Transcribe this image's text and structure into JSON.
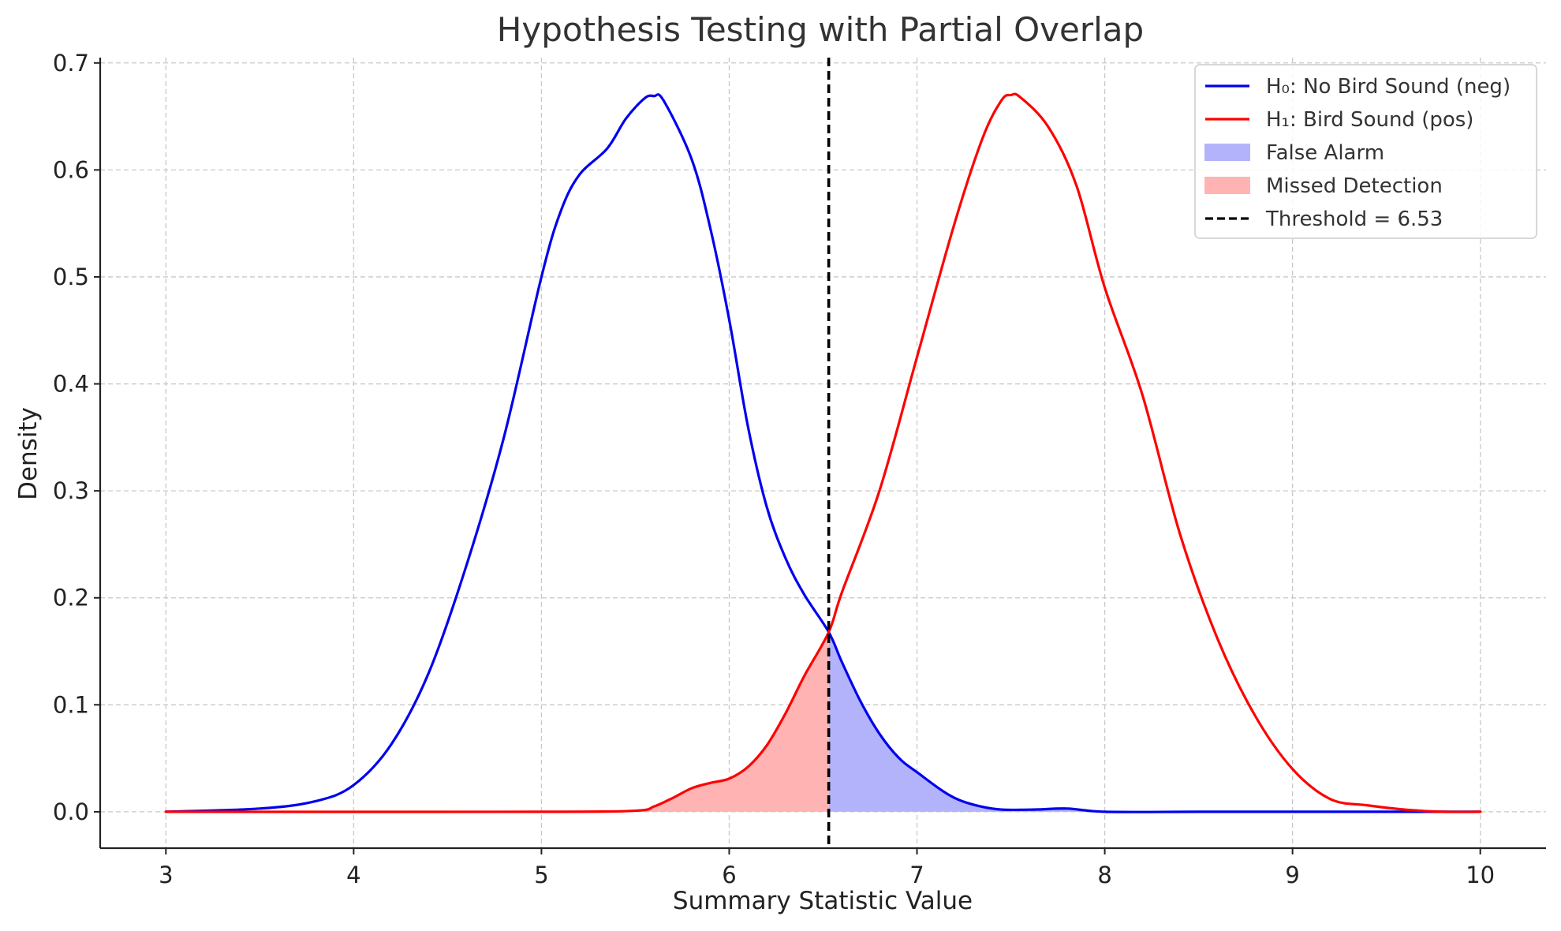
{
  "chart_data": {
    "type": "line",
    "title": "Hypothesis Testing with Partial Overlap",
    "xlabel": "Summary Statistic Value",
    "ylabel": "Density",
    "xlim": [
      2.65,
      10.35
    ],
    "ylim": [
      -0.034,
      0.705
    ],
    "xticks": [
      "3",
      "4",
      "5",
      "6",
      "7",
      "8",
      "9",
      "10"
    ],
    "yticks": [
      "0.0",
      "0.1",
      "0.2",
      "0.3",
      "0.4",
      "0.5",
      "0.6",
      "0.7"
    ],
    "grid": true,
    "legend_position": "top-right",
    "threshold": 6.53,
    "series": [
      {
        "name": "H₀: No Bird Sound (neg)",
        "color": "#0000ee",
        "x": [
          3.0,
          3.5,
          3.8,
          4.0,
          4.2,
          4.4,
          4.6,
          4.8,
          5.0,
          5.1,
          5.2,
          5.35,
          5.45,
          5.55,
          5.6,
          5.65,
          5.8,
          5.9,
          6.0,
          6.1,
          6.2,
          6.3,
          6.4,
          6.53,
          6.6,
          6.7,
          6.8,
          6.9,
          7.0,
          7.2,
          7.4,
          7.6,
          7.8,
          8.0,
          8.5,
          9.0,
          10.0
        ],
        "y": [
          0.0,
          0.003,
          0.01,
          0.025,
          0.063,
          0.13,
          0.23,
          0.35,
          0.5,
          0.56,
          0.595,
          0.62,
          0.648,
          0.667,
          0.669,
          0.665,
          0.61,
          0.545,
          0.46,
          0.36,
          0.285,
          0.237,
          0.203,
          0.168,
          0.14,
          0.103,
          0.073,
          0.051,
          0.037,
          0.013,
          0.003,
          0.002,
          0.003,
          0.0,
          0.0,
          0.0,
          0.0
        ]
      },
      {
        "name": "H₁: Bird Sound (pos)",
        "color": "#ff0000",
        "x": [
          3.0,
          5.0,
          5.5,
          5.6,
          5.7,
          5.8,
          5.9,
          6.0,
          6.1,
          6.2,
          6.3,
          6.4,
          6.53,
          6.6,
          6.8,
          7.0,
          7.2,
          7.35,
          7.45,
          7.5,
          7.55,
          7.7,
          7.85,
          8.0,
          8.2,
          8.4,
          8.6,
          8.8,
          9.0,
          9.2,
          9.4,
          9.6,
          9.8,
          10.0
        ],
        "y": [
          0.0,
          0.0,
          0.001,
          0.005,
          0.013,
          0.022,
          0.027,
          0.031,
          0.042,
          0.062,
          0.092,
          0.127,
          0.168,
          0.205,
          0.3,
          0.425,
          0.55,
          0.63,
          0.665,
          0.67,
          0.668,
          0.64,
          0.585,
          0.49,
          0.39,
          0.26,
          0.162,
          0.09,
          0.04,
          0.012,
          0.006,
          0.002,
          0.0,
          0.0
        ]
      }
    ],
    "legend": [
      {
        "label": "H₀: No Bird Sound (neg)",
        "kind": "line",
        "color": "#0000ee"
      },
      {
        "label": "H₁: Bird Sound (pos)",
        "kind": "line",
        "color": "#ff0000"
      },
      {
        "label": "False Alarm",
        "kind": "patch",
        "color": "#b3b3fb"
      },
      {
        "label": "Missed Detection",
        "kind": "patch",
        "color": "#ffb3b3"
      },
      {
        "label": "Threshold = 6.53",
        "kind": "dashed",
        "color": "#000000"
      }
    ],
    "shaded_regions": [
      {
        "label": "False Alarm",
        "series": "H₀: No Bird Sound (neg)",
        "from": 6.53,
        "to": 10.0,
        "color": "#b3b3fb"
      },
      {
        "label": "Missed Detection",
        "series": "H₁: Bird Sound (pos)",
        "from": 3.0,
        "to": 6.53,
        "color": "#ffb3b3"
      }
    ]
  }
}
